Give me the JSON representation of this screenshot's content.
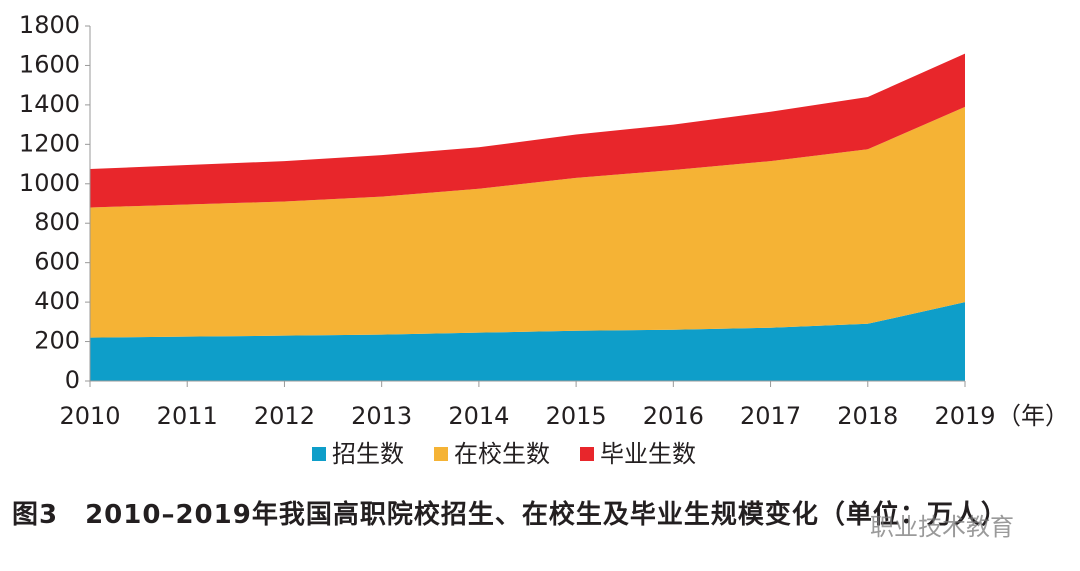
{
  "chart_data": {
    "type": "stacked_area",
    "x_unit_label": "（年）",
    "categories": [
      "2010",
      "2011",
      "2012",
      "2013",
      "2014",
      "2015",
      "2016",
      "2017",
      "2018",
      "2019"
    ],
    "series": [
      {
        "name": "招生数",
        "color": "#0e9ec9",
        "values": [
          220,
          225,
          230,
          235,
          245,
          255,
          260,
          270,
          290,
          400
        ]
      },
      {
        "name": "在校生数",
        "color": "#f5b335",
        "values": [
          660,
          670,
          680,
          700,
          730,
          775,
          810,
          845,
          885,
          990
        ]
      },
      {
        "name": "毕业生数",
        "color": "#e8262b",
        "values": [
          195,
          200,
          205,
          210,
          210,
          220,
          230,
          250,
          265,
          270
        ]
      }
    ],
    "ylim": [
      0,
      1800
    ],
    "yticks": [
      0,
      200,
      400,
      600,
      800,
      1000,
      1200,
      1400,
      1600,
      1800
    ],
    "caption": "图3　2010–2019年我国高职院校招生、在校生及毕业生规模变化（单位：万人）",
    "watermark": "职业技术教育"
  }
}
